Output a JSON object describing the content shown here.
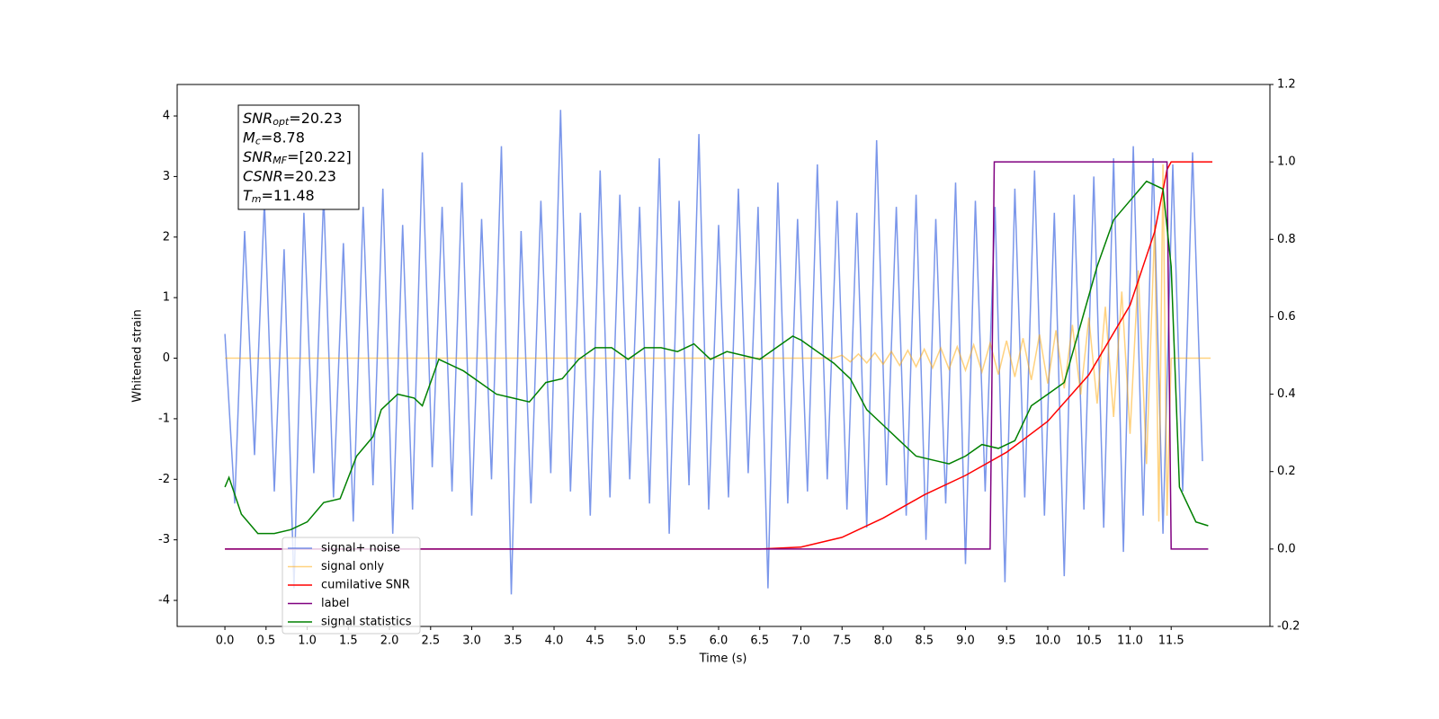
{
  "chart_data": {
    "type": "line",
    "xlabel": "Time (s)",
    "ylabel": "Whitened strain",
    "xlim": [
      -0.58,
      12.7
    ],
    "ylim": [
      -4.43,
      4.52
    ],
    "y2lim": [
      -0.2,
      1.2
    ],
    "xticks": [
      {
        "value": 0,
        "label": "0.0"
      },
      0.5,
      {
        "value": 1,
        "label": "1.0"
      },
      1.5,
      {
        "value": 2,
        "label": "2.0"
      },
      2.5,
      {
        "value": 3,
        "label": "3.0"
      },
      3.5,
      {
        "value": 4,
        "label": "4.0"
      },
      4.5,
      {
        "value": 5,
        "label": "5.0"
      },
      5.5,
      {
        "value": 6,
        "label": "6.0"
      },
      6.5,
      {
        "value": 7,
        "label": "7.0"
      },
      7.5,
      {
        "value": 8,
        "label": "8.0"
      },
      8.5,
      {
        "value": 9,
        "label": "9.0"
      },
      9.5,
      {
        "value": 10,
        "label": "10.0"
      },
      10.5,
      {
        "value": 11,
        "label": "11.0"
      },
      11.5
    ],
    "yticks": [
      -4,
      -3,
      -2,
      -1,
      0,
      1,
      2,
      3,
      4
    ],
    "y2ticks": [
      -0.2,
      {
        "value": 0,
        "label": "0.0"
      },
      0.2,
      0.4,
      0.6,
      0.8,
      {
        "value": 1,
        "label": "1.0"
      },
      1.2
    ],
    "legend": "lower left",
    "annotation": [
      {
        "name": "SNR",
        "sub": "opt",
        "text": "=20.23"
      },
      {
        "name": "M",
        "sub": "c",
        "text": "=8.78"
      },
      {
        "name": "SNR",
        "sub": "MF",
        "text": "=[20.22]"
      },
      {
        "name": "CSNR",
        "sub": null,
        "text": "=20.23"
      },
      {
        "name": "T",
        "sub": "m",
        "text": "=11.48"
      }
    ],
    "series": [
      {
        "name": "signal+ noise",
        "color": "#4169e1",
        "alpha": 0.7,
        "x": [
          0,
          0.12,
          0.24,
          0.36,
          0.48,
          0.6,
          0.72,
          0.84,
          0.96,
          1.08,
          1.2,
          1.32,
          1.44,
          1.56,
          1.68,
          1.8,
          1.92,
          2.04,
          2.16,
          2.28,
          2.4,
          2.52,
          2.64,
          2.76,
          2.88,
          3,
          3.12,
          3.24,
          3.36,
          3.48,
          3.6,
          3.72,
          3.84,
          3.96,
          4.08,
          4.2,
          4.32,
          4.44,
          4.56,
          4.68,
          4.8,
          4.92,
          5.04,
          5.16,
          5.28,
          5.4,
          5.52,
          5.64,
          5.76,
          5.88,
          6,
          6.12,
          6.24,
          6.36,
          6.48,
          6.6,
          6.72,
          6.84,
          6.96,
          7.08,
          7.2,
          7.32,
          7.44,
          7.56,
          7.68,
          7.8,
          7.92,
          8.04,
          8.16,
          8.28,
          8.4,
          8.52,
          8.64,
          8.76,
          8.88,
          9,
          9.12,
          9.24,
          9.36,
          9.48,
          9.6,
          9.72,
          9.84,
          9.96,
          10.08,
          10.2,
          10.32,
          10.44,
          10.56,
          10.68,
          10.8,
          10.92,
          11.04,
          11.16,
          11.28,
          11.4,
          11.52,
          11.64,
          11.76,
          11.88
        ],
        "values": [
          0.4,
          -2.4,
          2.1,
          -1.6,
          2.6,
          -2.2,
          1.8,
          -3.8,
          2.4,
          -1.9,
          2.7,
          -2.3,
          1.9,
          -2.7,
          2.5,
          -2.1,
          2.8,
          -2.9,
          2.2,
          -2.5,
          3.4,
          -1.8,
          2.5,
          -2.2,
          2.9,
          -2.6,
          2.3,
          -2.0,
          3.5,
          -3.9,
          2.1,
          -2.4,
          2.6,
          -1.9,
          4.1,
          -2.2,
          2.4,
          -2.6,
          3.1,
          -2.3,
          2.7,
          -2.0,
          2.5,
          -2.4,
          3.3,
          -2.9,
          2.6,
          -2.1,
          3.7,
          -2.5,
          2.2,
          -2.3,
          2.8,
          -1.9,
          2.5,
          -3.8,
          2.9,
          -2.4,
          2.3,
          -2.2,
          3.2,
          -2.0,
          2.6,
          -2.5,
          2.4,
          -2.8,
          3.6,
          -2.1,
          2.5,
          -2.6,
          2.7,
          -3.0,
          2.3,
          -2.4,
          2.9,
          -3.4,
          2.6,
          -2.2,
          2.5,
          -3.7,
          2.8,
          -2.3,
          3.1,
          -2.6,
          2.4,
          -3.6,
          2.7,
          -2.5,
          3.0,
          -2.8,
          3.3,
          -3.2,
          3.5,
          -2.6,
          3.3,
          -2.9,
          3.2,
          -2.2,
          3.4,
          -1.7
        ]
      },
      {
        "name": "signal only",
        "color": "#ffa500",
        "alpha": 0.5,
        "x": [
          0,
          7.4,
          7.5,
          7.6,
          7.7,
          7.8,
          7.9,
          8.0,
          8.1,
          8.2,
          8.3,
          8.4,
          8.5,
          8.6,
          8.7,
          8.8,
          8.9,
          9.0,
          9.1,
          9.2,
          9.3,
          9.4,
          9.5,
          9.6,
          9.7,
          9.8,
          9.9,
          10.0,
          10.1,
          10.2,
          10.3,
          10.4,
          10.5,
          10.6,
          10.7,
          10.8,
          10.9,
          11.0,
          11.1,
          11.2,
          11.3,
          11.35,
          11.4,
          11.45,
          11.5,
          11.98
        ],
        "values": [
          0,
          0,
          0.05,
          -0.06,
          0.07,
          -0.08,
          0.09,
          -0.1,
          0.11,
          -0.12,
          0.13,
          -0.14,
          0.15,
          -0.16,
          0.17,
          -0.18,
          0.19,
          -0.2,
          0.22,
          -0.23,
          0.25,
          -0.27,
          0.29,
          -0.31,
          0.33,
          -0.36,
          0.39,
          -0.42,
          0.46,
          -0.5,
          0.55,
          -0.6,
          0.67,
          -0.75,
          0.85,
          -0.97,
          1.1,
          -1.25,
          1.45,
          -1.75,
          2.2,
          -2.7,
          3.2,
          -2.6,
          0,
          0
        ]
      },
      {
        "name": "cumilative SNR",
        "color": "#ff0000",
        "axis": "y2",
        "x": [
          0,
          6.5,
          7.0,
          7.5,
          8.0,
          8.5,
          9.0,
          9.5,
          10.0,
          10.5,
          11.0,
          11.3,
          11.45,
          11.5,
          12.0
        ],
        "values": [
          0,
          0,
          0.005,
          0.03,
          0.08,
          0.14,
          0.19,
          0.25,
          0.33,
          0.45,
          0.63,
          0.82,
          0.98,
          1.0,
          1.0
        ]
      },
      {
        "name": "label",
        "color": "#800080",
        "axis": "y2",
        "x": [
          0,
          9.3,
          9.35,
          11.45,
          11.5,
          11.95
        ],
        "values": [
          0,
          0,
          1,
          1,
          0,
          0
        ]
      },
      {
        "name": "signal statistics",
        "color": "#008000",
        "axis": "y2",
        "x": [
          0,
          0.05,
          0.2,
          0.4,
          0.6,
          0.8,
          1.0,
          1.2,
          1.4,
          1.6,
          1.8,
          1.9,
          2.1,
          2.3,
          2.4,
          2.6,
          2.7,
          2.9,
          3.1,
          3.3,
          3.5,
          3.7,
          3.9,
          4.1,
          4.3,
          4.5,
          4.7,
          4.9,
          5.1,
          5.3,
          5.5,
          5.7,
          5.9,
          6.1,
          6.3,
          6.5,
          6.7,
          6.9,
          7.0,
          7.2,
          7.4,
          7.6,
          7.8,
          8.0,
          8.2,
          8.4,
          8.6,
          8.8,
          9.0,
          9.2,
          9.4,
          9.6,
          9.8,
          10.0,
          10.2,
          10.4,
          10.6,
          10.8,
          11.0,
          11.2,
          11.4,
          11.5,
          11.6,
          11.8,
          11.95
        ],
        "values": [
          0.16,
          0.185,
          0.09,
          0.04,
          0.04,
          0.05,
          0.07,
          0.12,
          0.13,
          0.24,
          0.29,
          0.36,
          0.4,
          0.39,
          0.37,
          0.49,
          0.48,
          0.46,
          0.43,
          0.4,
          0.39,
          0.38,
          0.43,
          0.44,
          0.49,
          0.52,
          0.52,
          0.49,
          0.52,
          0.52,
          0.51,
          0.53,
          0.49,
          0.51,
          0.5,
          0.49,
          0.52,
          0.55,
          0.54,
          0.51,
          0.48,
          0.44,
          0.36,
          0.32,
          0.28,
          0.24,
          0.23,
          0.22,
          0.24,
          0.27,
          0.26,
          0.28,
          0.37,
          0.4,
          0.43,
          0.58,
          0.73,
          0.85,
          0.9,
          0.95,
          0.93,
          0.73,
          0.16,
          0.07,
          0.06
        ]
      }
    ]
  }
}
